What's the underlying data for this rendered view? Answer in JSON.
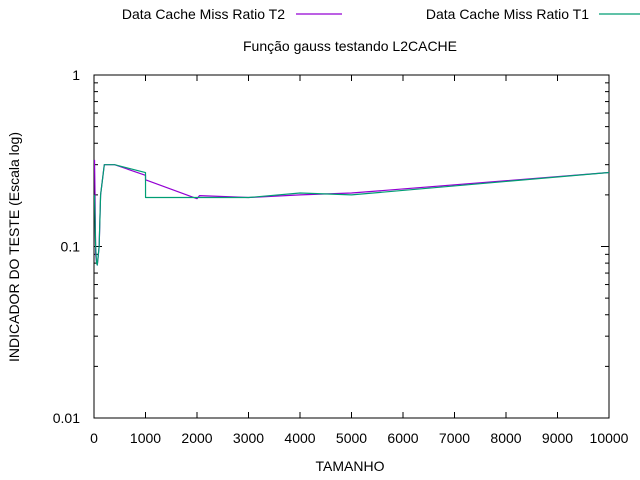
{
  "chart_data": {
    "type": "line",
    "title": "Função gauss testando L2CACHE",
    "xlabel": "TAMANHO",
    "ylabel": "INDICADOR DO TESTE (Escala log)",
    "xlim": [
      0,
      10000
    ],
    "ylim": [
      0.01,
      1
    ],
    "yscale": "log",
    "grid": false,
    "legend_position": "top",
    "x_ticks": [
      0,
      1000,
      2000,
      3000,
      4000,
      5000,
      6000,
      7000,
      8000,
      9000,
      10000
    ],
    "x_tick_labels": [
      "0",
      "1000",
      "2000",
      "3000",
      "4000",
      "5000",
      "6000",
      "7000",
      "8000",
      "9000",
      "10000"
    ],
    "y_ticks": [
      0.01,
      0.1,
      1
    ],
    "y_tick_labels": [
      "0.01",
      "0.1",
      "1"
    ],
    "series": [
      {
        "name": "Data Cache Miss Ratio T2",
        "color": "#9400d3",
        "x": [
          10,
          20,
          32,
          50,
          64,
          100,
          128,
          200,
          256,
          300,
          400,
          1000,
          1001,
          2000,
          2048,
          3000,
          4000,
          5000,
          10000
        ],
        "y": [
          0.32,
          0.2,
          0.09,
          0.08,
          0.078,
          0.1,
          0.2,
          0.3,
          0.3,
          0.3,
          0.3,
          0.26,
          0.245,
          0.19,
          0.198,
          0.193,
          0.2,
          0.205,
          0.27
        ]
      },
      {
        "name": "Data Cache Miss Ratio T1",
        "color": "#009e73",
        "x": [
          10,
          32,
          50,
          64,
          100,
          128,
          200,
          256,
          300,
          400,
          1000,
          1001,
          2000,
          3000,
          4000,
          5000,
          10000
        ],
        "y": [
          0.2,
          0.1,
          0.08,
          0.078,
          0.1,
          0.2,
          0.3,
          0.3,
          0.3,
          0.3,
          0.27,
          0.193,
          0.193,
          0.193,
          0.205,
          0.2,
          0.27
        ]
      }
    ]
  }
}
